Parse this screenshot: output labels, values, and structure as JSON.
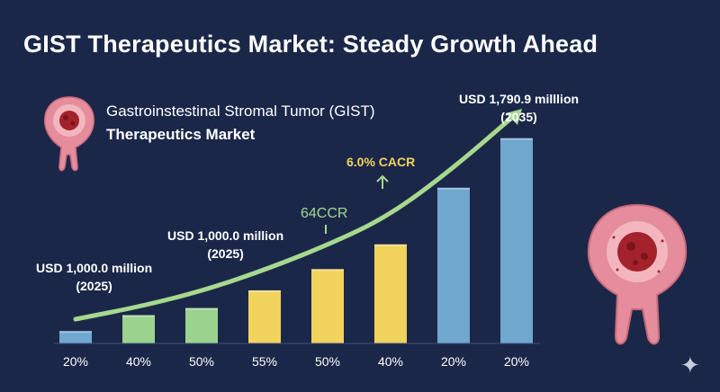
{
  "title": "GIST Therapeutics Market: Steady Growth Ahead",
  "subtitle_line1": "Gastroinstestinal Stromal Tumor (GIST)",
  "subtitle_line2": "Therapeutics Market",
  "annotations": {
    "left_value": "USD 1,000.0 million",
    "left_year": "(2025)",
    "mid_value": "USD 1,000.0 million",
    "mid_year": "(2025)",
    "ccr_label": "64CCR",
    "cagr_label": "6.0% CACR",
    "top_value": "USD 1,790.9 milllion",
    "top_year": "(2035)"
  },
  "icons": {
    "left_illustration": "stomach-tumor-icon",
    "right_illustration": "stomach-tumor-icon",
    "corner": "sparkle-icon"
  },
  "colors": {
    "background": "#1b2749",
    "trend_line": "#a6d88e",
    "blue_bar": "#6fa7cf",
    "green_bar": "#9bd38e",
    "yellow_bar": "#f1d35e"
  },
  "chart_data": {
    "type": "bar",
    "categories": [
      "20%",
      "40%",
      "50%",
      "55%",
      "50%",
      "40%",
      "20%",
      "20%"
    ],
    "values": [
      7,
      16,
      20,
      30,
      42,
      56,
      88,
      116
    ],
    "bar_colors": [
      "blue",
      "green",
      "green",
      "yellow",
      "yellow",
      "yellow",
      "blue",
      "blue"
    ],
    "trend_line": true,
    "ylim": [
      0,
      125
    ],
    "grid": false,
    "legend": "none"
  }
}
